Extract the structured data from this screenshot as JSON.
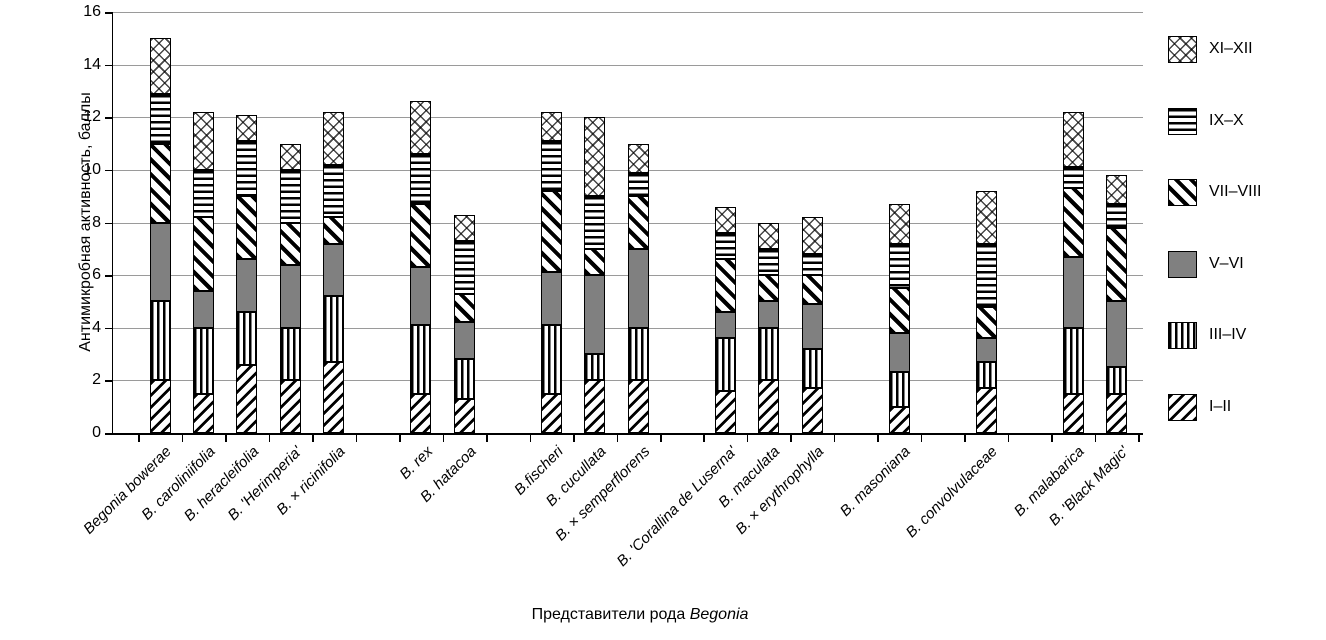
{
  "chart_data": {
    "type": "bar",
    "stacked": true,
    "ylabel": "Антимикробная активность, баллы",
    "xlabel": "Представители рода Begonia",
    "xlabel_parts": {
      "prefix": "Представители рода ",
      "genus_italic": "Begonia"
    },
    "ylim": [
      0,
      16
    ],
    "yticks": [
      0,
      2,
      4,
      6,
      8,
      10,
      12,
      14,
      16
    ],
    "grid": "horizontal",
    "legend_position": "right",
    "categories": [
      "Begonia bowerae",
      "B. caroliniifolia",
      "B. heracleifolia",
      "B. 'Herimperia'",
      "B. × ricinifolia",
      "B. rex",
      "B. hatacoa",
      "B.fischeri",
      "B. cucullata",
      "B. × semperflorens",
      "B. 'Corallina de Luserna'",
      "B. maculata",
      "B. × erythrophylla",
      "B. masoniana",
      "B. convolvulaceae",
      "B. malabarica",
      "B. 'Black Magic'"
    ],
    "category_slots": [
      0,
      1,
      2,
      3,
      4,
      6,
      7,
      9,
      10,
      11,
      13,
      14,
      15,
      17,
      19,
      21,
      22
    ],
    "total_slots": 23,
    "series": [
      {
        "name": "I–II",
        "pattern": "diagup",
        "values": [
          2,
          1.5,
          2.6,
          2,
          2.7,
          1.5,
          1.3,
          1.5,
          2,
          2,
          1.6,
          2,
          1.7,
          1,
          1.7,
          1.5,
          1.5
        ]
      },
      {
        "name": "III–IV",
        "pattern": "vlines",
        "values": [
          3,
          2.5,
          2,
          2,
          2.5,
          2.6,
          1.5,
          2.6,
          1,
          2,
          2,
          2,
          1.5,
          1.3,
          1,
          2.5,
          1
        ]
      },
      {
        "name": "V–VI",
        "pattern": "solid",
        "values": [
          3,
          1.4,
          2,
          2.4,
          2,
          2.2,
          1.4,
          2,
          3,
          3,
          1,
          1,
          1.7,
          1.5,
          0.9,
          2.7,
          2.5
        ]
      },
      {
        "name": "VII–VIII",
        "pattern": "diagdown",
        "values": [
          3,
          2.8,
          2.4,
          1.6,
          1,
          2.4,
          1.1,
          3.1,
          1,
          2,
          2,
          1,
          1.1,
          1.7,
          1.2,
          2.6,
          2.8
        ]
      },
      {
        "name": "IX–X",
        "pattern": "hlines",
        "values": [
          1.9,
          1.8,
          2.1,
          2,
          2,
          1.9,
          2,
          1.9,
          2,
          0.9,
          1,
          1,
          0.8,
          1.7,
          2.4,
          0.8,
          0.9
        ]
      },
      {
        "name": "XI–XII",
        "pattern": "crosshatch",
        "values": [
          2.1,
          2.2,
          1,
          1,
          2,
          2,
          1,
          1.1,
          3,
          1.1,
          1,
          1,
          1.4,
          1.5,
          2,
          2.1,
          1.1
        ]
      }
    ],
    "legend": [
      {
        "label": "XI–XII",
        "pattern": "crosshatch"
      },
      {
        "label": "IX–X",
        "pattern": "hlines"
      },
      {
        "label": "VII–VIII",
        "pattern": "diagdown"
      },
      {
        "label": "V–VI",
        "pattern": "solid"
      },
      {
        "label": "III–IV",
        "pattern": "vlines"
      },
      {
        "label": "I–II",
        "pattern": "diagup"
      }
    ],
    "colors": {
      "solid_fill": "#808080",
      "grid": "#9a9a9a",
      "axis": "#000000",
      "background": "#ffffff"
    }
  }
}
